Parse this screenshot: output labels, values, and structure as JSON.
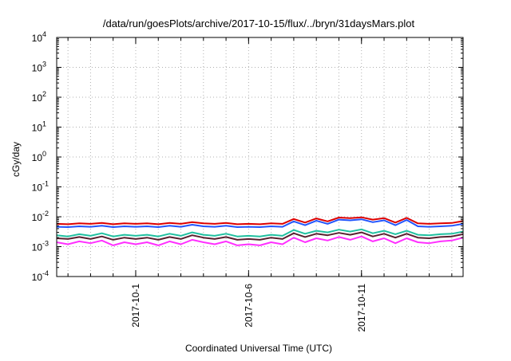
{
  "chart_data": {
    "type": "line",
    "title": "/data/run/goesPlots/archive/2017-10-15/flux/../bryn/31daysMars.plot",
    "xlabel": "Coordinated Universal Time (UTC)",
    "ylabel": "cGy/day",
    "yscale": "log",
    "ylim": [
      0.0001,
      10000
    ],
    "yticks": [
      {
        "base": "10",
        "exp": "4",
        "value": 10000
      },
      {
        "base": "10",
        "exp": "3",
        "value": 1000
      },
      {
        "base": "10",
        "exp": "2",
        "value": 100
      },
      {
        "base": "10",
        "exp": "1",
        "value": 10
      },
      {
        "base": "10",
        "exp": "0",
        "value": 1
      },
      {
        "base": "10",
        "exp": "-1",
        "value": 0.1
      },
      {
        "base": "10",
        "exp": "-2",
        "value": 0.01
      },
      {
        "base": "10",
        "exp": "-3",
        "value": 0.001
      },
      {
        "base": "10",
        "exp": "-4",
        "value": 0.0001
      }
    ],
    "xlim": [
      "2017-09-27T12:00",
      "2017-10-15T12:00"
    ],
    "xticks": [
      "2017-10-1",
      "2017-10-6",
      "2017-10-11"
    ],
    "xtick_dates": [
      "2017-10-01",
      "2017-10-06",
      "2017-10-11"
    ],
    "grid": true,
    "legend": "none",
    "series_x": [
      "2017-09-27T12:00",
      "2017-09-28T00:00",
      "2017-09-28T12:00",
      "2017-09-29T00:00",
      "2017-09-29T12:00",
      "2017-09-30T00:00",
      "2017-09-30T12:00",
      "2017-10-01T00:00",
      "2017-10-01T12:00",
      "2017-10-02T00:00",
      "2017-10-02T12:00",
      "2017-10-03T00:00",
      "2017-10-03T12:00",
      "2017-10-04T00:00",
      "2017-10-04T12:00",
      "2017-10-05T00:00",
      "2017-10-05T12:00",
      "2017-10-06T00:00",
      "2017-10-06T12:00",
      "2017-10-07T00:00",
      "2017-10-07T12:00",
      "2017-10-08T00:00",
      "2017-10-08T12:00",
      "2017-10-09T00:00",
      "2017-10-09T12:00",
      "2017-10-10T00:00",
      "2017-10-10T12:00",
      "2017-10-11T00:00",
      "2017-10-11T12:00",
      "2017-10-12T00:00",
      "2017-10-12T12:00",
      "2017-10-13T00:00",
      "2017-10-13T12:00",
      "2017-10-14T00:00",
      "2017-10-14T12:00",
      "2017-10-15T00:00",
      "2017-10-15T12:00"
    ],
    "series": [
      {
        "color": "#dd0000",
        "values": [
          0.0058,
          0.0056,
          0.006,
          0.0058,
          0.0062,
          0.0056,
          0.006,
          0.0058,
          0.006,
          0.0056,
          0.0062,
          0.0058,
          0.0066,
          0.006,
          0.0058,
          0.0062,
          0.0056,
          0.0058,
          0.0056,
          0.006,
          0.0058,
          0.0084,
          0.0064,
          0.0088,
          0.007,
          0.0094,
          0.009,
          0.0096,
          0.008,
          0.009,
          0.0064,
          0.0092,
          0.006,
          0.0058,
          0.006,
          0.0062,
          0.0072
        ]
      },
      {
        "color": "#2255ff",
        "values": [
          0.0046,
          0.0045,
          0.0048,
          0.0046,
          0.005,
          0.0045,
          0.0048,
          0.0046,
          0.0048,
          0.0045,
          0.005,
          0.0046,
          0.0054,
          0.0048,
          0.0046,
          0.005,
          0.0045,
          0.0046,
          0.0045,
          0.0048,
          0.0046,
          0.007,
          0.0052,
          0.0074,
          0.0058,
          0.008,
          0.0076,
          0.0082,
          0.0066,
          0.0076,
          0.0052,
          0.0078,
          0.0048,
          0.0046,
          0.0048,
          0.005,
          0.0058
        ]
      },
      {
        "color": "#20c0a0",
        "values": [
          0.0024,
          0.0022,
          0.0026,
          0.0023,
          0.0028,
          0.0022,
          0.0025,
          0.0023,
          0.0025,
          0.0022,
          0.0027,
          0.0023,
          0.003,
          0.0025,
          0.0023,
          0.0027,
          0.0022,
          0.0023,
          0.0022,
          0.0025,
          0.0023,
          0.0036,
          0.0027,
          0.0034,
          0.003,
          0.0037,
          0.0032,
          0.0038,
          0.0028,
          0.0034,
          0.0026,
          0.0034,
          0.0025,
          0.0024,
          0.0026,
          0.0027,
          0.0032
        ]
      },
      {
        "color": "#5a2030",
        "values": [
          0.0019,
          0.0018,
          0.0021,
          0.0018,
          0.0022,
          0.0017,
          0.002,
          0.0018,
          0.002,
          0.0017,
          0.0021,
          0.0018,
          0.0024,
          0.002,
          0.0018,
          0.0021,
          0.0017,
          0.0018,
          0.0017,
          0.002,
          0.0018,
          0.0028,
          0.0021,
          0.0027,
          0.0024,
          0.0029,
          0.0025,
          0.003,
          0.0022,
          0.0027,
          0.002,
          0.0027,
          0.002,
          0.0019,
          0.0021,
          0.0022,
          0.0026
        ]
      },
      {
        "color": "#ff30ff",
        "values": [
          0.0014,
          0.0012,
          0.0015,
          0.0013,
          0.0016,
          0.0011,
          0.0014,
          0.0012,
          0.0014,
          0.0011,
          0.0015,
          0.0012,
          0.0017,
          0.0014,
          0.0012,
          0.0015,
          0.0011,
          0.0012,
          0.0011,
          0.0014,
          0.0012,
          0.002,
          0.0014,
          0.0019,
          0.0016,
          0.0021,
          0.0017,
          0.0022,
          0.0015,
          0.0019,
          0.0013,
          0.0019,
          0.0014,
          0.0013,
          0.0015,
          0.0016,
          0.002
        ]
      }
    ]
  }
}
